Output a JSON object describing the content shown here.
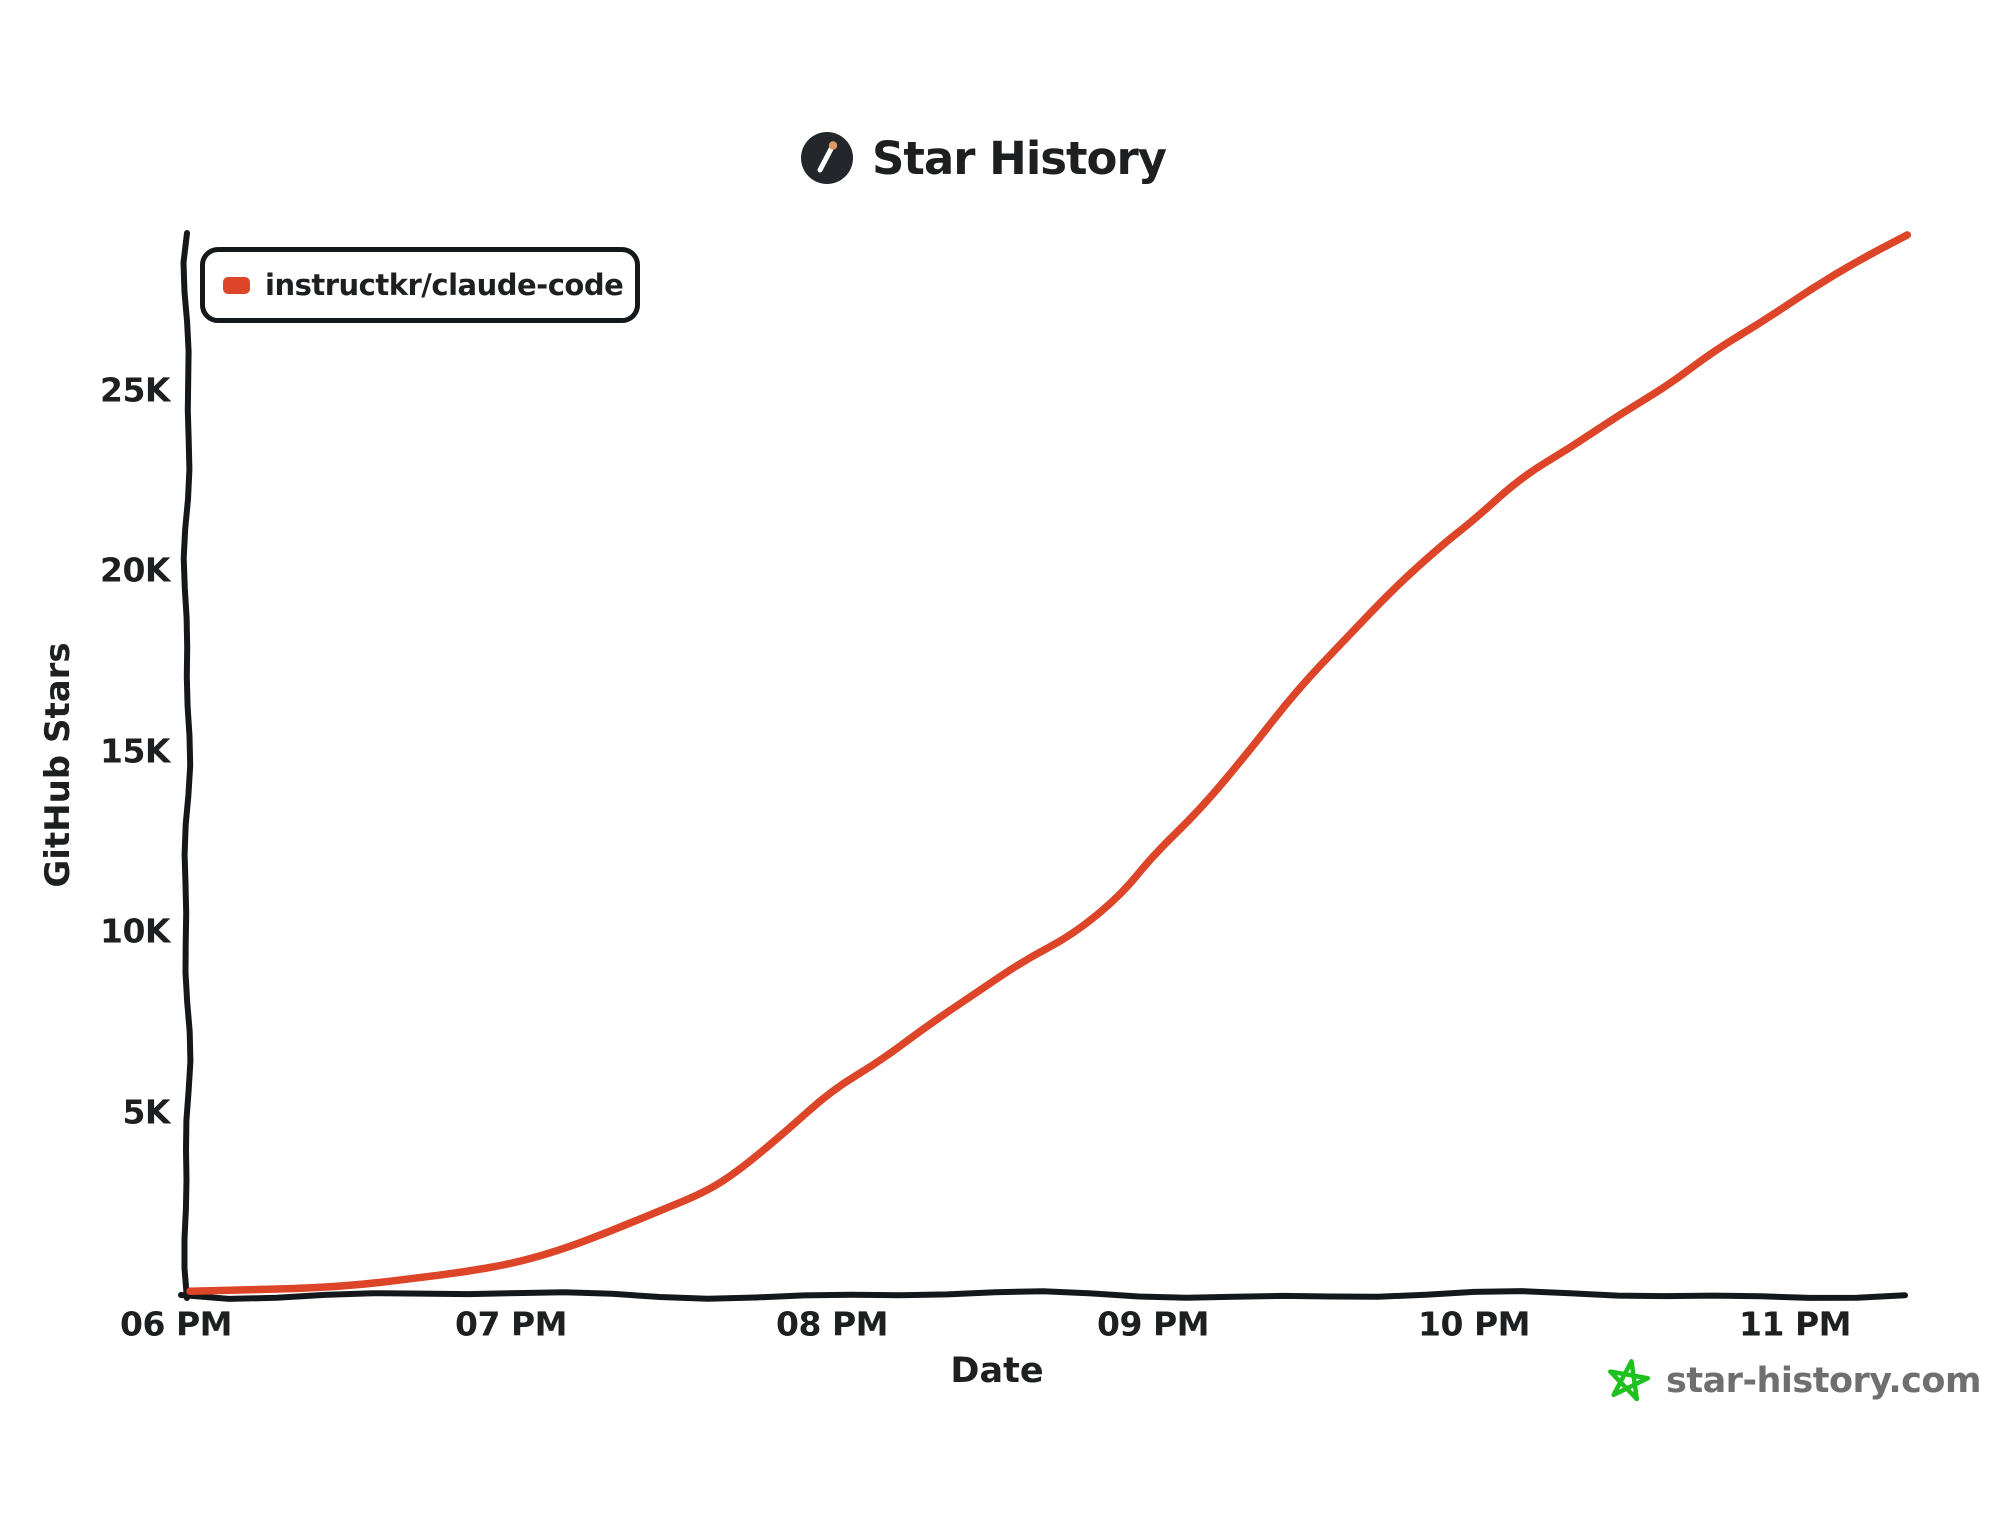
{
  "title": {
    "text": "Star History"
  },
  "legend": {
    "label": "instructkr/claude-code"
  },
  "axis_titles": {
    "x": "Date",
    "y": "GitHub Stars"
  },
  "branding": {
    "text": "star-history.com"
  },
  "icons": {
    "logo": "star-history-logo-icon",
    "branding_star": "green-star-icon"
  },
  "colors": {
    "series": "#dd4528",
    "axis": "#15181b",
    "text": "#1d1f21",
    "muted": "#6f6f6f",
    "green": "#1fc11f",
    "logo_bg": "#23262b",
    "logo_tip": "#dd9b62"
  },
  "chart_data": {
    "type": "line",
    "title": "Star History",
    "xlabel": "Date",
    "ylabel": "GitHub Stars",
    "x_tick_labels": [
      "06 PM",
      "07 PM",
      "08 PM",
      "09 PM",
      "10 PM",
      "11 PM"
    ],
    "y_tick_labels": [
      "5K",
      "10K",
      "15K",
      "20K",
      "25K"
    ],
    "y_tick_values": [
      5000,
      10000,
      15000,
      20000,
      25000
    ],
    "x_range_hours_after_6pm": [
      0,
      5.35
    ],
    "ylim": [
      0,
      29500
    ],
    "grid": false,
    "legend_position": "top-left",
    "series": [
      {
        "name": "instructkr/claude-code",
        "color": "#dd4528",
        "points_hours_stars": [
          [
            0,
            20
          ],
          [
            0.2,
            60
          ],
          [
            0.4,
            120
          ],
          [
            0.55,
            220
          ],
          [
            0.7,
            380
          ],
          [
            0.85,
            550
          ],
          [
            1.0,
            780
          ],
          [
            1.15,
            1150
          ],
          [
            1.3,
            1650
          ],
          [
            1.45,
            2200
          ],
          [
            1.6,
            2750
          ],
          [
            1.7,
            3300
          ],
          [
            1.85,
            4400
          ],
          [
            2.0,
            5600
          ],
          [
            2.15,
            6400
          ],
          [
            2.3,
            7400
          ],
          [
            2.45,
            8300
          ],
          [
            2.6,
            9200
          ],
          [
            2.75,
            9900
          ],
          [
            2.9,
            11000
          ],
          [
            3.0,
            12100
          ],
          [
            3.15,
            13400
          ],
          [
            3.3,
            15000
          ],
          [
            3.45,
            16700
          ],
          [
            3.6,
            18100
          ],
          [
            3.75,
            19500
          ],
          [
            3.9,
            20700
          ],
          [
            4.0,
            21400
          ],
          [
            4.15,
            22600
          ],
          [
            4.3,
            23400
          ],
          [
            4.45,
            24300
          ],
          [
            4.6,
            25100
          ],
          [
            4.75,
            26100
          ],
          [
            4.9,
            26900
          ],
          [
            5.05,
            27800
          ],
          [
            5.2,
            28600
          ],
          [
            5.35,
            29300
          ]
        ]
      }
    ]
  }
}
